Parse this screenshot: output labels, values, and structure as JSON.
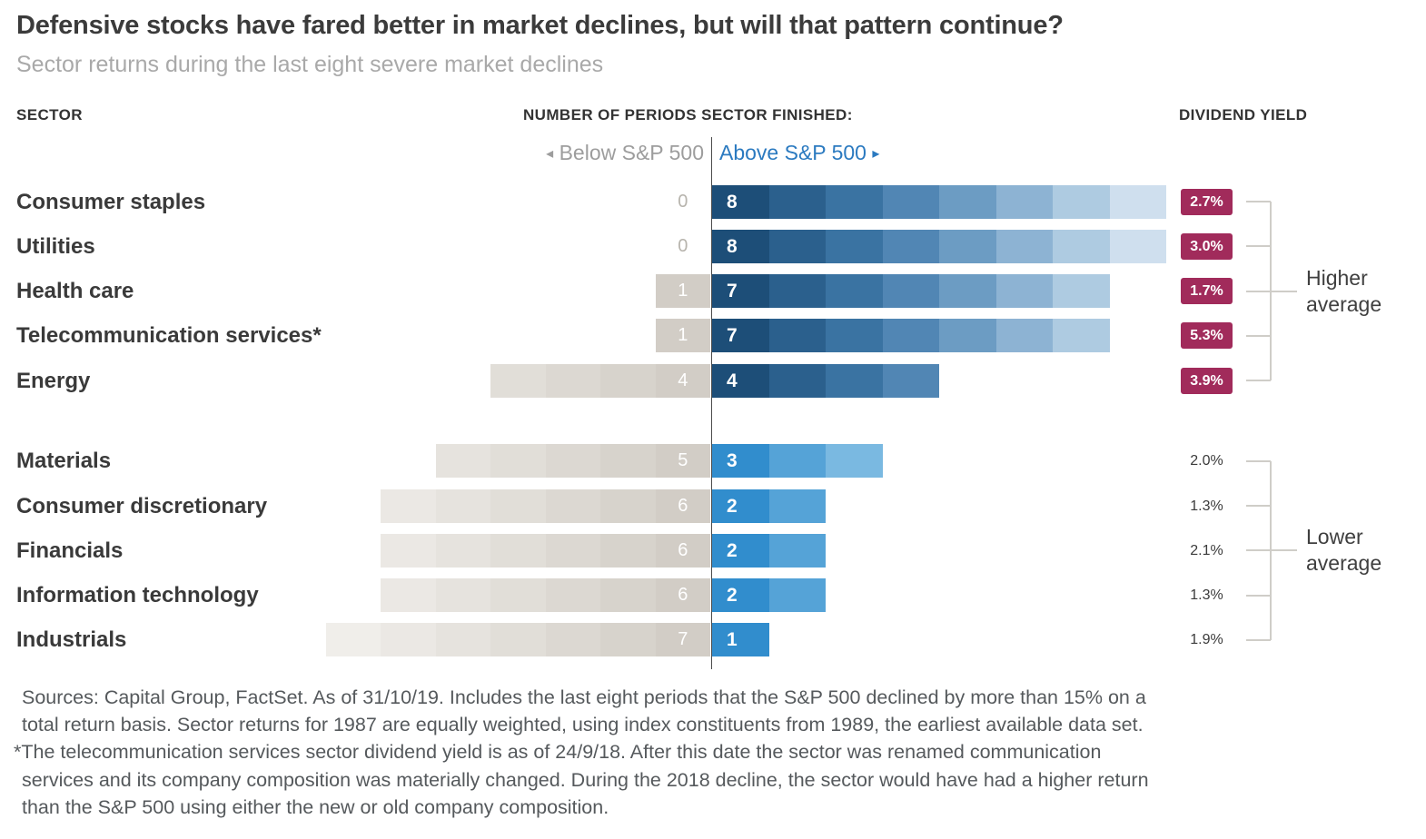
{
  "title": "Defensive stocks have fared better in market declines, but will that pattern continue?",
  "subtitle": "Sector returns during the last eight severe market declines",
  "columns": {
    "sector": "SECTOR",
    "periods": "NUMBER OF PERIODS SECTOR FINISHED:",
    "dividend": "DIVIDEND YIELD"
  },
  "axis": {
    "below": "Below S&P 500",
    "above": "Above S&P 500"
  },
  "icons": {
    "left_arrow": "◂",
    "right_arrow": "▸"
  },
  "annotations": {
    "higher": "Higher average",
    "lower": "Lower average"
  },
  "chart_data": {
    "type": "bar",
    "orientation": "horizontal-diverging",
    "title": "Defensive stocks have fared better in market declines, but will that pattern continue?",
    "subtitle": "Sector returns during the last eight severe market declines",
    "categories": [
      "Consumer staples",
      "Utilities",
      "Health care",
      "Telecommunication services*",
      "Energy",
      "Materials",
      "Consumer discretionary",
      "Financials",
      "Information technology",
      "Industrials"
    ],
    "series": [
      {
        "name": "Below S&P 500",
        "values": [
          0,
          0,
          1,
          1,
          4,
          5,
          6,
          6,
          6,
          7
        ]
      },
      {
        "name": "Above S&P 500",
        "values": [
          8,
          8,
          7,
          7,
          4,
          3,
          2,
          2,
          2,
          1
        ]
      }
    ],
    "dividend_yield": [
      "2.7%",
      "3.0%",
      "1.7%",
      "5.3%",
      "3.9%",
      "2.0%",
      "1.3%",
      "2.1%",
      "1.3%",
      "1.9%"
    ],
    "groups": [
      "higher",
      "higher",
      "higher",
      "higher",
      "higher",
      "lower",
      "lower",
      "lower",
      "lower",
      "lower"
    ],
    "total_periods": 8,
    "xlim": [
      -8,
      8
    ],
    "legend_position": "top-center-split",
    "grid": false
  },
  "colors": {
    "above_blue_dark": [
      "#1d4e78",
      "#2b608d",
      "#3a73a2",
      "#5186b4",
      "#6c9cc3",
      "#8db3d3",
      "#aecbe1",
      "#cfdfee"
    ],
    "above_blue_light": [
      "#318dcd",
      "#55a3d7",
      "#7ab9e1"
    ],
    "below_gray": [
      "#d2cdc6",
      "#d7d3cc",
      "#dcd8d2",
      "#e1ded8",
      "#e6e3de",
      "#ebe8e4",
      "#f0eeea"
    ],
    "badge_magenta": "#a12b5b",
    "above_label_blue": "#2b7ac0",
    "below_label_gray": "#9d9d9d",
    "baseline_gray": "#4c4c4c"
  },
  "footnote_lines": [
    "Sources: Capital Group, FactSet. As of 31/10/19. Includes the last eight periods that the S&P 500 declined by more than 15% on a",
    "total return basis. Sector returns for 1987 are equally weighted, using index constituents from 1989, the earliest available data set.",
    "*The telecommunication services sector dividend yield is as of 24/9/18. After this date the sector was renamed communication",
    "services and its company composition was materially changed. During the 2018 decline, the sector would have had a higher return",
    "than the S&P 500 using either the new or old company composition."
  ]
}
